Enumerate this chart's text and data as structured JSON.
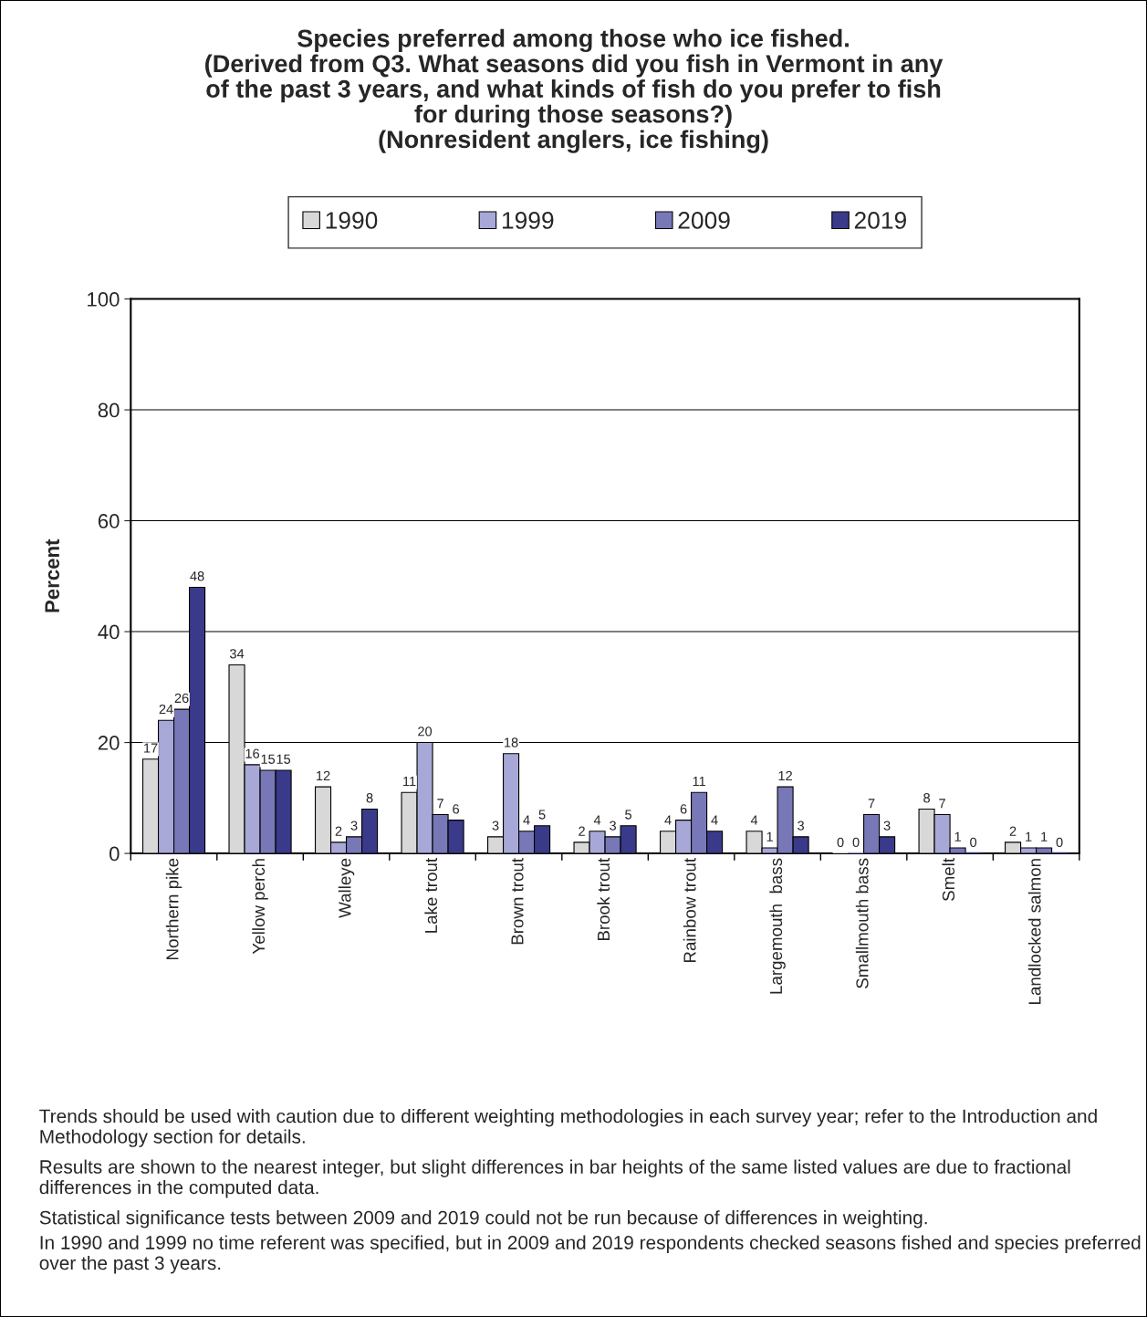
{
  "chart_data": {
    "type": "bar",
    "title": "Species preferred among those who ice fished.\n(Derived from Q3. What seasons did you fish in Vermont in any\nof the past 3 years, and what kinds of fish do you prefer to fish\nfor during those seasons?)\n(Nonresident anglers, ice fishing)",
    "ylabel": "Percent",
    "categories": [
      "Northern pike",
      "Yellow perch",
      "Walleye",
      "Lake trout",
      "Brown trout",
      "Brook trout",
      "Rainbow trout",
      "Largemouth  bass",
      "Smallmouth bass",
      "Smelt",
      "Landlocked salmon"
    ],
    "series": [
      {
        "name": "1990",
        "color": "#d8d8d8",
        "values": [
          17,
          34,
          12,
          11,
          3,
          2,
          4,
          4,
          0,
          8,
          2
        ]
      },
      {
        "name": "1999",
        "color": "#a8a8d8",
        "values": [
          24,
          16,
          2,
          20,
          18,
          4,
          6,
          1,
          0,
          7,
          1
        ]
      },
      {
        "name": "2009",
        "color": "#7878b8",
        "values": [
          26,
          15,
          3,
          7,
          4,
          3,
          11,
          12,
          7,
          1,
          1
        ]
      },
      {
        "name": "2019",
        "color": "#3a3a8a",
        "values": [
          48,
          15,
          8,
          6,
          5,
          5,
          4,
          3,
          3,
          0,
          0
        ]
      }
    ],
    "ylim": [
      0,
      100
    ],
    "yticks": [
      0,
      20,
      40,
      60,
      80,
      100
    ],
    "grid": "y",
    "legend": "top",
    "data_labels": true,
    "annotations": [
      "Trends should be used with caution due to different weighting methodologies in each survey year; refer to the Introduction and Methodology section for details.",
      "Results are shown to the nearest integer, but slight differences in bar heights of the same listed values are due to fractional differences in the computed data.",
      "Statistical significance tests between 2009 and 2019 could not be run because of differences in weighting.",
      "In 1990 and 1999 no time referent was specified, but in 2009 and 2019 respondents checked seasons fished and species preferred over the past 3 years."
    ]
  }
}
